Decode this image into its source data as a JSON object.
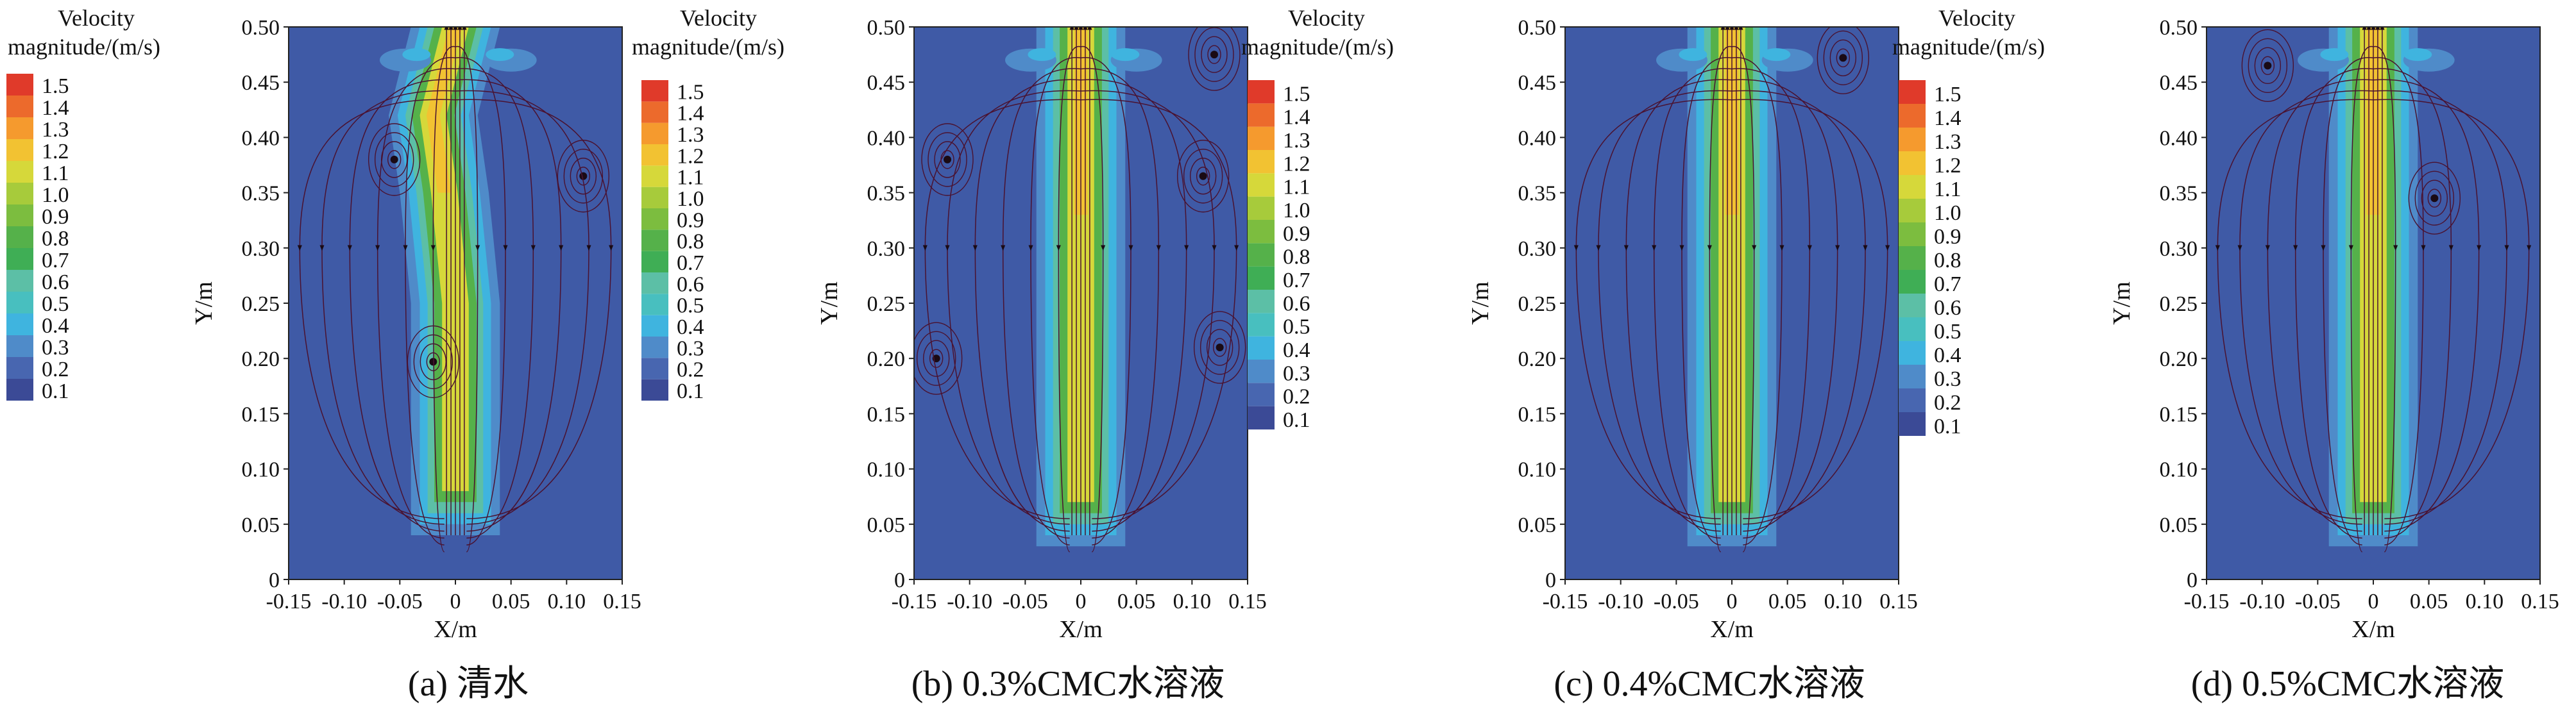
{
  "chart_data": [
    {
      "type": "heatmap",
      "panel_caption": "(a) 清水",
      "xlabel": "X/m",
      "ylabel": "Y/m",
      "xlim": [
        -0.15,
        0.15
      ],
      "ylim": [
        0,
        0.5
      ],
      "x_ticks": [
        "-0.15",
        "-0.10",
        "-0.05",
        "0",
        "0.05",
        "0.10",
        "0.15"
      ],
      "y_ticks": [
        "0",
        "0.05",
        "0.10",
        "0.15",
        "0.20",
        "0.25",
        "0.30",
        "0.35",
        "0.40",
        "0.45",
        "0.50"
      ],
      "colorbar": {
        "title_line1": "Velocity",
        "title_line2": "magnitude/(m/s)",
        "levels": [
          "0.1",
          "0.2",
          "0.3",
          "0.4",
          "0.5",
          "0.6",
          "0.7",
          "0.8",
          "0.9",
          "1.0",
          "1.1",
          "1.2",
          "1.3",
          "1.4",
          "1.5"
        ]
      },
      "jet": {
        "centerline": [
          [
            0.0,
            0.04
          ],
          [
            0.0,
            0.25
          ],
          [
            -0.01,
            0.35
          ],
          [
            -0.02,
            0.42
          ],
          [
            0.0,
            0.5
          ]
        ],
        "core_velocity": 1.1,
        "peak_velocity": 1.2
      },
      "vortex_centers": [
        [
          -0.055,
          0.38
        ],
        [
          0.115,
          0.365
        ],
        [
          -0.02,
          0.197
        ]
      ]
    },
    {
      "type": "heatmap",
      "panel_caption": "(b) 0.3%CMC水溶液",
      "xlabel": "X/m",
      "ylabel": "Y/m",
      "xlim": [
        -0.15,
        0.15
      ],
      "ylim": [
        0,
        0.5
      ],
      "x_ticks": [
        "-0.15",
        "-0.10",
        "-0.05",
        "0",
        "0.05",
        "0.10",
        "0.15"
      ],
      "y_ticks": [
        "0",
        "0.05",
        "0.10",
        "0.15",
        "0.20",
        "0.25",
        "0.30",
        "0.35",
        "0.40",
        "0.45",
        "0.50"
      ],
      "colorbar": {
        "title_line1": "Velocity",
        "title_line2": "magnitude/(m/s)",
        "levels": [
          "0.1",
          "0.2",
          "0.3",
          "0.4",
          "0.5",
          "0.6",
          "0.7",
          "0.8",
          "0.9",
          "1.0",
          "1.1",
          "1.2",
          "1.3",
          "1.4",
          "1.5"
        ]
      },
      "jet": {
        "centerline": [
          [
            0.0,
            0.03
          ],
          [
            0.0,
            0.5
          ]
        ],
        "core_velocity": 1.1,
        "peak_velocity": 1.2
      },
      "vortex_centers": [
        [
          -0.12,
          0.38
        ],
        [
          0.11,
          0.365
        ],
        [
          -0.13,
          0.2
        ],
        [
          0.125,
          0.21
        ],
        [
          0.12,
          0.475
        ]
      ]
    },
    {
      "type": "heatmap",
      "panel_caption": "(c) 0.4%CMC水溶液",
      "xlabel": "X/m",
      "ylabel": "Y/m",
      "xlim": [
        -0.15,
        0.15
      ],
      "ylim": [
        0,
        0.5
      ],
      "x_ticks": [
        "-0.15",
        "-0.10",
        "-0.05",
        "0",
        "0.05",
        "0.10",
        "0.15"
      ],
      "y_ticks": [
        "0",
        "0.05",
        "0.10",
        "0.15",
        "0.20",
        "0.25",
        "0.30",
        "0.35",
        "0.40",
        "0.45",
        "0.50"
      ],
      "colorbar": {
        "title_line1": "Velocity",
        "title_line2": "magnitude/(m/s)",
        "levels": [
          "0.1",
          "0.2",
          "0.3",
          "0.4",
          "0.5",
          "0.6",
          "0.7",
          "0.8",
          "0.9",
          "1.0",
          "1.1",
          "1.2",
          "1.3",
          "1.4",
          "1.5"
        ]
      },
      "jet": {
        "centerline": [
          [
            0.0,
            0.03
          ],
          [
            0.0,
            0.5
          ]
        ],
        "core_velocity": 1.1,
        "peak_velocity": 1.2
      },
      "vortex_centers": [
        [
          0.1,
          0.472
        ]
      ]
    },
    {
      "type": "heatmap",
      "panel_caption": "(d) 0.5%CMC水溶液",
      "xlabel": "X/m",
      "ylabel": "Y/m",
      "xlim": [
        -0.15,
        0.15
      ],
      "ylim": [
        0,
        0.5
      ],
      "x_ticks": [
        "-0.15",
        "-0.10",
        "-0.05",
        "0",
        "0.05",
        "0.10",
        "0.15"
      ],
      "y_ticks": [
        "0",
        "0.05",
        "0.10",
        "0.15",
        "0.20",
        "0.25",
        "0.30",
        "0.35",
        "0.40",
        "0.45",
        "0.50"
      ],
      "colorbar": null,
      "jet": {
        "centerline": [
          [
            0.0,
            0.03
          ],
          [
            0.0,
            0.5
          ]
        ],
        "core_velocity": 1.1,
        "peak_velocity": 1.2
      },
      "vortex_centers": [
        [
          0.055,
          0.345
        ],
        [
          -0.095,
          0.465
        ]
      ]
    }
  ],
  "colors": {
    "background_fill": "#3f5aa6",
    "levels": [
      "#3b4a96",
      "#4866b0",
      "#4f8bc9",
      "#3fb4df",
      "#48bfbf",
      "#5cbfa6",
      "#3fae55",
      "#55b14a",
      "#7cbd3f",
      "#a7cb3b",
      "#d6d83a",
      "#f2c232",
      "#f59a2e",
      "#ec6a2c",
      "#e03a2a"
    ],
    "streamline": "#4a1230"
  }
}
